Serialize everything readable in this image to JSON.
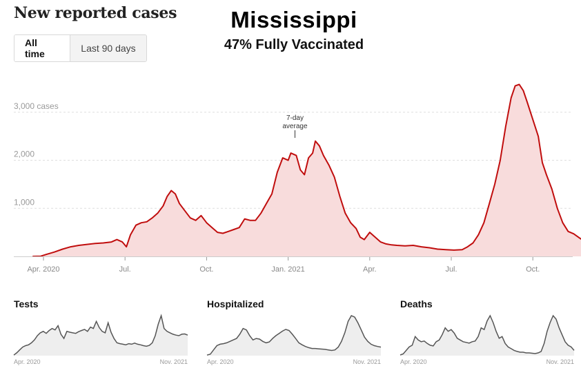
{
  "header": {
    "title": "New reported cases",
    "state": "Mississippi",
    "vaccination": "47% Fully Vaccinated"
  },
  "toggle": {
    "options": [
      "All time",
      "Last 90 days"
    ],
    "selected": "All time"
  },
  "colors": {
    "case_line": "#c00d0d",
    "case_fill": "#f8dcdc",
    "mini_line": "#555555",
    "mini_fill": "#eeeeee",
    "grid": "#dddddd",
    "axis_text": "#888888"
  },
  "chart_data": [
    {
      "type": "area",
      "title": "New reported cases",
      "ylabel": "cases",
      "y_ticks": [
        {
          "value": 1000,
          "label": "1,000"
        },
        {
          "value": 2000,
          "label": "2,000"
        },
        {
          "value": 3000,
          "label": "3,000 cases"
        }
      ],
      "ylim": [
        0,
        3800
      ],
      "x_ticks": [
        {
          "month": 1,
          "label": "Apr. 2020"
        },
        {
          "month": 4,
          "label": "Jul."
        },
        {
          "month": 7,
          "label": "Oct."
        },
        {
          "month": 10,
          "label": "Jan. 2021"
        },
        {
          "month": 13,
          "label": "Apr."
        },
        {
          "month": 16,
          "label": "Jul."
        },
        {
          "month": 19,
          "label": "Oct."
        }
      ],
      "x_unit": "months since Mar. 2020",
      "xlim": [
        0.6,
        20.8
      ],
      "annotation": {
        "text_line1": "7-day",
        "text_line2": "average",
        "at_month": 10.25
      },
      "grid": true,
      "series": [
        {
          "name": "7-day average",
          "points": [
            [
              0.6,
              0
            ],
            [
              0.9,
              5
            ],
            [
              1.1,
              40
            ],
            [
              1.4,
              90
            ],
            [
              1.7,
              150
            ],
            [
              2.0,
              200
            ],
            [
              2.3,
              230
            ],
            [
              2.6,
              250
            ],
            [
              2.9,
              270
            ],
            [
              3.2,
              280
            ],
            [
              3.5,
              300
            ],
            [
              3.7,
              350
            ],
            [
              3.9,
              300
            ],
            [
              4.05,
              200
            ],
            [
              4.2,
              450
            ],
            [
              4.4,
              650
            ],
            [
              4.6,
              700
            ],
            [
              4.8,
              720
            ],
            [
              5.0,
              800
            ],
            [
              5.2,
              900
            ],
            [
              5.4,
              1050
            ],
            [
              5.55,
              1250
            ],
            [
              5.7,
              1370
            ],
            [
              5.85,
              1300
            ],
            [
              6.0,
              1100
            ],
            [
              6.2,
              950
            ],
            [
              6.4,
              800
            ],
            [
              6.6,
              750
            ],
            [
              6.8,
              850
            ],
            [
              7.0,
              700
            ],
            [
              7.2,
              600
            ],
            [
              7.4,
              500
            ],
            [
              7.6,
              480
            ],
            [
              7.8,
              520
            ],
            [
              8.0,
              560
            ],
            [
              8.2,
              600
            ],
            [
              8.4,
              780
            ],
            [
              8.6,
              750
            ],
            [
              8.8,
              750
            ],
            [
              9.0,
              900
            ],
            [
              9.2,
              1100
            ],
            [
              9.4,
              1300
            ],
            [
              9.6,
              1750
            ],
            [
              9.8,
              2050
            ],
            [
              10.0,
              2000
            ],
            [
              10.1,
              2150
            ],
            [
              10.3,
              2100
            ],
            [
              10.45,
              1800
            ],
            [
              10.6,
              1700
            ],
            [
              10.75,
              2050
            ],
            [
              10.9,
              2150
            ],
            [
              11.0,
              2400
            ],
            [
              11.15,
              2300
            ],
            [
              11.3,
              2100
            ],
            [
              11.5,
              1900
            ],
            [
              11.7,
              1650
            ],
            [
              11.9,
              1250
            ],
            [
              12.1,
              900
            ],
            [
              12.3,
              700
            ],
            [
              12.5,
              580
            ],
            [
              12.65,
              400
            ],
            [
              12.8,
              350
            ],
            [
              13.0,
              500
            ],
            [
              13.2,
              400
            ],
            [
              13.4,
              300
            ],
            [
              13.6,
              260
            ],
            [
              13.8,
              240
            ],
            [
              14.0,
              230
            ],
            [
              14.3,
              220
            ],
            [
              14.6,
              230
            ],
            [
              14.9,
              200
            ],
            [
              15.2,
              180
            ],
            [
              15.5,
              150
            ],
            [
              15.8,
              140
            ],
            [
              16.1,
              130
            ],
            [
              16.4,
              140
            ],
            [
              16.6,
              200
            ],
            [
              16.8,
              280
            ],
            [
              17.0,
              450
            ],
            [
              17.2,
              700
            ],
            [
              17.4,
              1100
            ],
            [
              17.6,
              1500
            ],
            [
              17.8,
              2000
            ],
            [
              18.0,
              2700
            ],
            [
              18.2,
              3300
            ],
            [
              18.35,
              3550
            ],
            [
              18.5,
              3580
            ],
            [
              18.65,
              3450
            ],
            [
              18.8,
              3200
            ],
            [
              19.0,
              2850
            ],
            [
              19.2,
              2500
            ],
            [
              19.35,
              1950
            ],
            [
              19.5,
              1700
            ],
            [
              19.7,
              1400
            ],
            [
              19.9,
              1000
            ],
            [
              20.1,
              700
            ],
            [
              20.3,
              520
            ],
            [
              20.5,
              470
            ],
            [
              20.7,
              390
            ],
            [
              20.9,
              310
            ],
            [
              21.1,
              300
            ],
            [
              21.3,
              360
            ]
          ]
        }
      ]
    },
    {
      "type": "area",
      "title": "Tests",
      "x_labels": [
        "Apr. 2020",
        "Nov. 2021"
      ],
      "values": [
        2,
        10,
        20,
        30,
        35,
        38,
        45,
        55,
        70,
        80,
        85,
        78,
        88,
        95,
        90,
        105,
        75,
        60,
        85,
        82,
        80,
        78,
        84,
        88,
        92,
        85,
        100,
        95,
        120,
        98,
        85,
        80,
        115,
        82,
        60,
        45,
        42,
        40,
        38,
        42,
        40,
        44,
        40,
        38,
        35,
        33,
        36,
        45,
        70,
        110,
        140,
        95,
        85,
        80,
        75,
        72,
        70,
        75,
        76,
        72
      ]
    },
    {
      "type": "area",
      "title": "Hospitalized",
      "x_labels": [
        "Apr. 2020",
        "Nov. 2021"
      ],
      "values": [
        2,
        5,
        20,
        35,
        40,
        42,
        45,
        50,
        55,
        60,
        75,
        95,
        90,
        70,
        55,
        60,
        58,
        50,
        45,
        48,
        60,
        70,
        78,
        86,
        92,
        88,
        75,
        60,
        45,
        38,
        32,
        28,
        25,
        25,
        24,
        23,
        22,
        20,
        18,
        20,
        30,
        50,
        80,
        120,
        140,
        135,
        115,
        90,
        65,
        50,
        40,
        35,
        32,
        30
      ]
    },
    {
      "type": "area",
      "title": "Deaths",
      "x_labels": [
        "Apr. 2020",
        "Nov. 2021"
      ],
      "values": [
        2,
        5,
        15,
        25,
        30,
        55,
        45,
        40,
        42,
        35,
        30,
        28,
        40,
        45,
        60,
        80,
        70,
        75,
        65,
        50,
        45,
        40,
        38,
        36,
        40,
        42,
        55,
        80,
        75,
        100,
        115,
        95,
        70,
        50,
        55,
        35,
        25,
        20,
        15,
        12,
        10,
        10,
        8,
        8,
        7,
        6,
        8,
        12,
        35,
        70,
        95,
        115,
        105,
        80,
        60,
        40,
        30,
        25,
        15
      ]
    }
  ]
}
